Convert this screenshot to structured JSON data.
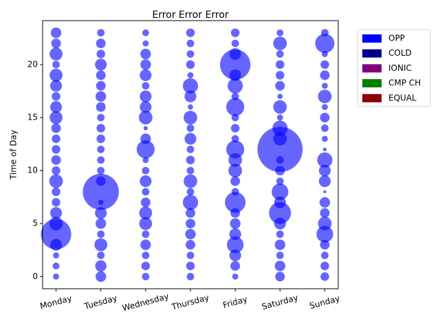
{
  "chart_data": {
    "type": "scatter",
    "title": "Error Error Error",
    "y_label": "Time of Day",
    "categories": [
      "Monday",
      "Tuesday",
      "Wednesday",
      "Thursday",
      "Friday",
      "Saturday",
      "Sunday"
    ],
    "color": "#0000ff",
    "alpha": 0.6,
    "ylim": [
      -1.15,
      24.15
    ],
    "yticks": [
      0,
      5,
      10,
      15,
      20
    ],
    "series": [
      {
        "values": [
          0,
          1,
          2,
          3,
          4,
          5,
          6,
          7,
          8,
          9,
          10,
          11,
          12,
          13,
          14,
          15,
          16,
          17,
          18,
          19,
          20,
          21,
          22,
          23
        ],
        "sizes": [
          40,
          50,
          40,
          150,
          1000,
          200,
          150,
          80,
          80,
          200,
          80,
          100,
          80,
          80,
          100,
          180,
          150,
          80,
          150,
          180,
          60,
          180,
          100,
          120
        ]
      },
      {
        "values": [
          0,
          1,
          2,
          3,
          4,
          5,
          6,
          7,
          8,
          9,
          10,
          11,
          12,
          13,
          14,
          15,
          16,
          17,
          18,
          19,
          20,
          21,
          22,
          23
        ],
        "sizes": [
          120,
          140,
          60,
          180,
          60,
          120,
          150,
          30,
          1400,
          100,
          60,
          60,
          60,
          80,
          80,
          60,
          100,
          120,
          100,
          100,
          150,
          80,
          100,
          60
        ]
      },
      {
        "values": [
          0,
          1,
          2,
          3,
          4,
          5,
          6,
          7,
          8,
          9,
          10,
          11,
          12,
          13,
          14,
          15,
          16,
          17,
          18,
          19,
          20,
          21,
          22,
          23
        ],
        "sizes": [
          60,
          80,
          60,
          120,
          60,
          180,
          180,
          100,
          60,
          150,
          60,
          40,
          350,
          120,
          20,
          200,
          150,
          150,
          60,
          150,
          120,
          120,
          40,
          50
        ]
      },
      {
        "values": [
          0,
          1,
          2,
          3,
          4,
          5,
          6,
          7,
          8,
          9,
          10,
          11,
          12,
          13,
          14,
          15,
          16,
          17,
          18,
          19,
          20,
          21,
          22,
          23
        ],
        "sizes": [
          60,
          80,
          60,
          100,
          120,
          100,
          100,
          250,
          60,
          200,
          60,
          80,
          60,
          150,
          60,
          200,
          30,
          150,
          250,
          40,
          80,
          60,
          60,
          80
        ]
      },
      {
        "values": [
          0,
          1,
          2,
          3,
          4,
          5,
          6,
          7,
          8,
          9,
          10,
          11,
          12,
          13,
          14,
          15,
          16,
          17,
          18,
          19,
          20,
          21,
          22,
          23
        ],
        "sizes": [
          40,
          100,
          150,
          300,
          150,
          120,
          100,
          460,
          60,
          100,
          200,
          200,
          350,
          60,
          80,
          60,
          350,
          60,
          250,
          150,
          1000,
          150,
          60,
          80
        ]
      },
      {
        "values": [
          0,
          1,
          2,
          3,
          4,
          5,
          6,
          7,
          8,
          9,
          10,
          11,
          12,
          13,
          14,
          15,
          16,
          17,
          18,
          19,
          20,
          21,
          22,
          23
        ],
        "sizes": [
          100,
          120,
          60,
          120,
          60,
          150,
          520,
          150,
          300,
          60,
          100,
          60,
          2200,
          200,
          250,
          40,
          200,
          30,
          100,
          80,
          80,
          60,
          200,
          50
        ]
      },
      {
        "values": [
          0,
          1,
          2,
          3,
          4,
          5,
          6,
          7,
          8,
          9,
          10,
          11,
          12,
          13,
          14,
          15,
          16,
          17,
          18,
          19,
          20,
          21,
          22,
          23
        ],
        "sizes": [
          80,
          80,
          60,
          100,
          300,
          200,
          100,
          120,
          10,
          150,
          150,
          250,
          15,
          40,
          60,
          100,
          40,
          200,
          40,
          100,
          80,
          40,
          400,
          60
        ]
      }
    ],
    "legend": [
      {
        "name": "OPP",
        "color": "#0000ff"
      },
      {
        "name": "COLD",
        "color": "#00008b"
      },
      {
        "name": "IONIC",
        "color": "#800080"
      },
      {
        "name": "CMP CH",
        "color": "#008000"
      },
      {
        "name": "EQUAL",
        "color": "#8b0000"
      }
    ]
  }
}
